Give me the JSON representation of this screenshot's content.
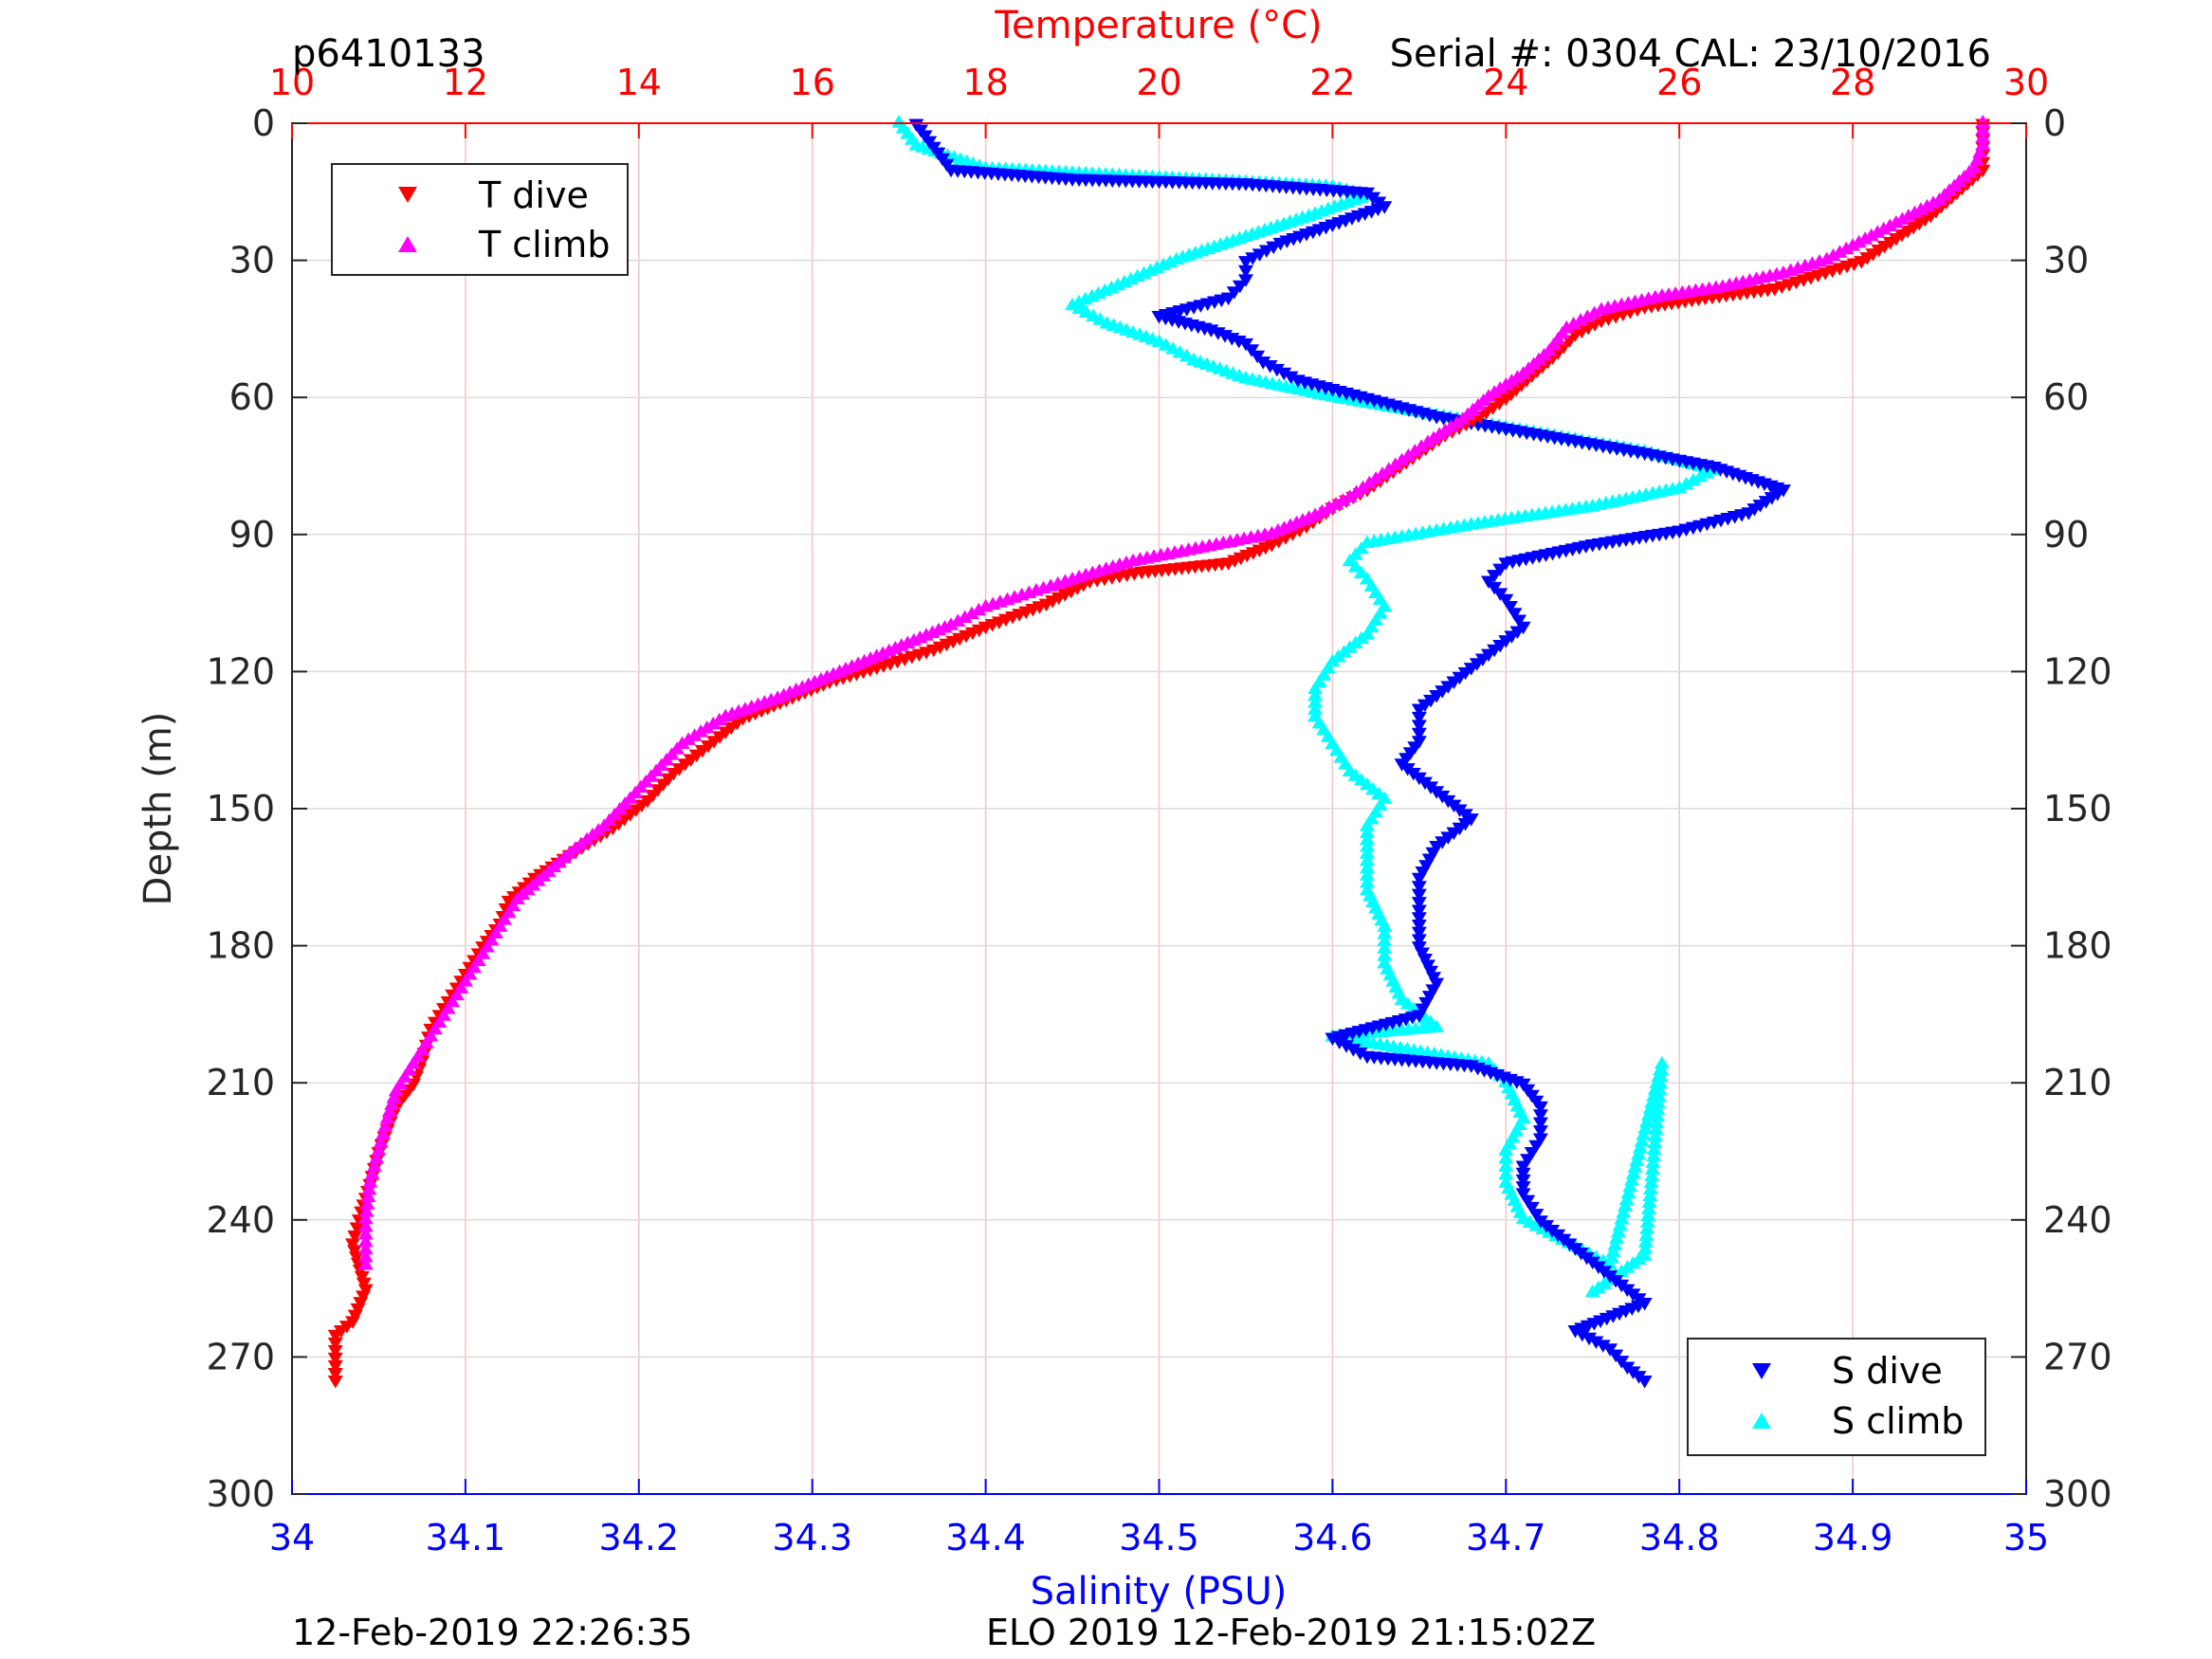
{
  "header": {
    "profile_id": "p6410133",
    "serial_info": "Serial #: 0304  CAL: 23/10/2016"
  },
  "footer": {
    "left_timestamp": "12-Feb-2019 22:26:35",
    "center_text": "ELO 2019 12-Feb-2019 21:15:02Z"
  },
  "colors": {
    "t_dive": "#ff0000",
    "t_climb": "#ff00ff",
    "s_dive": "#0000ff",
    "s_climb": "#00ffff",
    "temp_axis": "#ff0000",
    "sal_axis": "#0000ff"
  },
  "chart_data": {
    "type": "scatter",
    "ylabel": "Depth (m)",
    "ylim": [
      0,
      300
    ],
    "y_reversed": true,
    "y_ticks": [
      0,
      30,
      60,
      90,
      120,
      150,
      180,
      210,
      240,
      270,
      300
    ],
    "top_axis": {
      "label": "Temperature (°C)",
      "range": [
        10,
        30
      ],
      "ticks": [
        10,
        12,
        14,
        16,
        18,
        20,
        22,
        24,
        26,
        28,
        30
      ]
    },
    "bottom_axis": {
      "label": "Salinity (PSU)",
      "range": [
        34,
        35
      ],
      "ticks": [
        "34",
        "34.1",
        "34.2",
        "34.3",
        "34.4",
        "34.5",
        "34.6",
        "34.7",
        "34.8",
        "34.9",
        "35"
      ]
    },
    "grid": true,
    "legend_temperature": {
      "placement": "top-left",
      "entries": [
        "T dive",
        "T climb"
      ]
    },
    "legend_salinity": {
      "placement": "bottom-right",
      "entries": [
        "S dive",
        "S climb"
      ]
    },
    "series": [
      {
        "name": "T dive",
        "axis": "temperature",
        "marker": "triangle-down",
        "points": [
          [
            29.5,
            0
          ],
          [
            29.5,
            5
          ],
          [
            29.5,
            10
          ],
          [
            29.2,
            15
          ],
          [
            28.9,
            20
          ],
          [
            28.5,
            25
          ],
          [
            28.1,
            30
          ],
          [
            27.6,
            33
          ],
          [
            27.1,
            36
          ],
          [
            26.3,
            38
          ],
          [
            25.6,
            40
          ],
          [
            25.1,
            43
          ],
          [
            24.8,
            46
          ],
          [
            24.6,
            50
          ],
          [
            24.3,
            55
          ],
          [
            24.0,
            60
          ],
          [
            23.7,
            64
          ],
          [
            23.3,
            68
          ],
          [
            23.0,
            72
          ],
          [
            22.7,
            76
          ],
          [
            22.4,
            80
          ],
          [
            22.0,
            84
          ],
          [
            21.7,
            88
          ],
          [
            21.3,
            92
          ],
          [
            20.8,
            96
          ],
          [
            19.8,
            98
          ],
          [
            19.2,
            100
          ],
          [
            18.7,
            105
          ],
          [
            18.0,
            110
          ],
          [
            17.4,
            115
          ],
          [
            16.9,
            118
          ],
          [
            16.2,
            122
          ],
          [
            15.7,
            126
          ],
          [
            15.2,
            130
          ],
          [
            14.8,
            136
          ],
          [
            14.4,
            142
          ],
          [
            14.1,
            148
          ],
          [
            13.7,
            154
          ],
          [
            13.2,
            160
          ],
          [
            12.8,
            165
          ],
          [
            12.5,
            170
          ],
          [
            12.4,
            175
          ],
          [
            12.2,
            180
          ],
          [
            12.0,
            186
          ],
          [
            11.8,
            192
          ],
          [
            11.6,
            198
          ],
          [
            11.5,
            205
          ],
          [
            11.4,
            210
          ],
          [
            11.2,
            215
          ],
          [
            11.1,
            220
          ],
          [
            11.0,
            225
          ],
          [
            10.9,
            232
          ],
          [
            10.8,
            238
          ],
          [
            10.7,
            245
          ],
          [
            10.85,
            255
          ],
          [
            10.7,
            262
          ],
          [
            10.5,
            265
          ],
          [
            10.5,
            270
          ],
          [
            10.5,
            275
          ]
        ]
      },
      {
        "name": "T climb",
        "axis": "temperature",
        "marker": "triangle-up",
        "points": [
          [
            29.5,
            0
          ],
          [
            29.5,
            5
          ],
          [
            29.4,
            10
          ],
          [
            29.0,
            17
          ],
          [
            28.5,
            22
          ],
          [
            28.0,
            27
          ],
          [
            27.7,
            30
          ],
          [
            27.2,
            33
          ],
          [
            26.5,
            36
          ],
          [
            25.8,
            38
          ],
          [
            25.1,
            41
          ],
          [
            24.7,
            45
          ],
          [
            24.5,
            50
          ],
          [
            24.2,
            55
          ],
          [
            23.8,
            60
          ],
          [
            23.5,
            65
          ],
          [
            23.1,
            70
          ],
          [
            22.8,
            74
          ],
          [
            22.5,
            78
          ],
          [
            22.2,
            82
          ],
          [
            21.8,
            86
          ],
          [
            21.3,
            90
          ],
          [
            20.5,
            93
          ],
          [
            19.7,
            96
          ],
          [
            19.0,
            100
          ],
          [
            18.5,
            103
          ],
          [
            18.0,
            106
          ],
          [
            17.6,
            110
          ],
          [
            17.1,
            114
          ],
          [
            16.6,
            118
          ],
          [
            16.1,
            122
          ],
          [
            15.6,
            126
          ],
          [
            15.0,
            130
          ],
          [
            14.5,
            136
          ],
          [
            14.2,
            142
          ],
          [
            13.9,
            148
          ],
          [
            13.6,
            154
          ],
          [
            13.2,
            160
          ],
          [
            12.9,
            165
          ],
          [
            12.6,
            170
          ],
          [
            12.4,
            176
          ],
          [
            12.2,
            182
          ],
          [
            12.0,
            188
          ],
          [
            11.8,
            194
          ],
          [
            11.6,
            200
          ],
          [
            11.4,
            206
          ],
          [
            11.2,
            212
          ],
          [
            11.1,
            218
          ],
          [
            11.0,
            225
          ],
          [
            10.9,
            232
          ],
          [
            10.85,
            240
          ],
          [
            10.85,
            250
          ]
        ]
      },
      {
        "name": "S dive",
        "axis": "salinity",
        "marker": "triangle-down",
        "points": [
          [
            34.36,
            0
          ],
          [
            34.37,
            5
          ],
          [
            34.38,
            10
          ],
          [
            34.45,
            12
          ],
          [
            34.55,
            13
          ],
          [
            34.62,
            15
          ],
          [
            34.63,
            18
          ],
          [
            34.6,
            22
          ],
          [
            34.57,
            26
          ],
          [
            34.55,
            30
          ],
          [
            34.55,
            34
          ],
          [
            34.54,
            38
          ],
          [
            34.5,
            42
          ],
          [
            34.53,
            45
          ],
          [
            34.55,
            48
          ],
          [
            34.56,
            52
          ],
          [
            34.58,
            56
          ],
          [
            34.62,
            60
          ],
          [
            34.66,
            64
          ],
          [
            34.72,
            68
          ],
          [
            34.78,
            72
          ],
          [
            34.82,
            75
          ],
          [
            34.86,
            80
          ],
          [
            34.84,
            85
          ],
          [
            34.8,
            89
          ],
          [
            34.75,
            92
          ],
          [
            34.7,
            96
          ],
          [
            34.69,
            100
          ],
          [
            34.7,
            104
          ],
          [
            34.71,
            110
          ],
          [
            34.69,
            116
          ],
          [
            34.67,
            122
          ],
          [
            34.65,
            128
          ],
          [
            34.65,
            135
          ],
          [
            34.64,
            140
          ],
          [
            34.66,
            146
          ],
          [
            34.68,
            152
          ],
          [
            34.66,
            158
          ],
          [
            34.65,
            165
          ],
          [
            34.65,
            172
          ],
          [
            34.65,
            180
          ],
          [
            34.66,
            188
          ],
          [
            34.65,
            195
          ],
          [
            34.6,
            200
          ],
          [
            34.62,
            204
          ],
          [
            34.68,
            206
          ],
          [
            34.71,
            210
          ],
          [
            34.72,
            215
          ],
          [
            34.72,
            222
          ],
          [
            34.71,
            228
          ],
          [
            34.71,
            234
          ],
          [
            34.72,
            240
          ],
          [
            34.74,
            246
          ],
          [
            34.76,
            252
          ],
          [
            34.78,
            258
          ],
          [
            34.74,
            264
          ],
          [
            34.76,
            268
          ],
          [
            34.77,
            272
          ],
          [
            34.78,
            275
          ]
        ]
      },
      {
        "name": "S climb",
        "axis": "salinity",
        "marker": "triangle-up",
        "points": [
          [
            34.35,
            0
          ],
          [
            34.36,
            5
          ],
          [
            34.4,
            10
          ],
          [
            34.5,
            12
          ],
          [
            34.6,
            14
          ],
          [
            34.62,
            16
          ],
          [
            34.59,
            20
          ],
          [
            34.55,
            25
          ],
          [
            34.51,
            30
          ],
          [
            34.48,
            35
          ],
          [
            34.45,
            40
          ],
          [
            34.47,
            44
          ],
          [
            34.5,
            48
          ],
          [
            34.52,
            52
          ],
          [
            34.55,
            56
          ],
          [
            34.6,
            60
          ],
          [
            34.66,
            64
          ],
          [
            34.72,
            68
          ],
          [
            34.78,
            72
          ],
          [
            34.82,
            76
          ],
          [
            34.8,
            80
          ],
          [
            34.75,
            84
          ],
          [
            34.68,
            88
          ],
          [
            34.62,
            92
          ],
          [
            34.61,
            96
          ],
          [
            34.62,
            100
          ],
          [
            34.63,
            106
          ],
          [
            34.62,
            112
          ],
          [
            34.6,
            118
          ],
          [
            34.59,
            124
          ],
          [
            34.59,
            130
          ],
          [
            34.6,
            136
          ],
          [
            34.61,
            142
          ],
          [
            34.63,
            148
          ],
          [
            34.62,
            154
          ],
          [
            34.62,
            160
          ],
          [
            34.62,
            168
          ],
          [
            34.63,
            176
          ],
          [
            34.63,
            184
          ],
          [
            34.64,
            192
          ],
          [
            34.66,
            198
          ],
          [
            34.6,
            200
          ],
          [
            34.69,
            206
          ],
          [
            34.7,
            210
          ],
          [
            34.71,
            218
          ],
          [
            34.7,
            225
          ],
          [
            34.7,
            232
          ],
          [
            34.71,
            240
          ],
          [
            34.74,
            246
          ],
          [
            34.76,
            250
          ],
          [
            34.79,
            206
          ],
          [
            34.78,
            248
          ],
          [
            34.75,
            256
          ]
        ]
      }
    ]
  }
}
